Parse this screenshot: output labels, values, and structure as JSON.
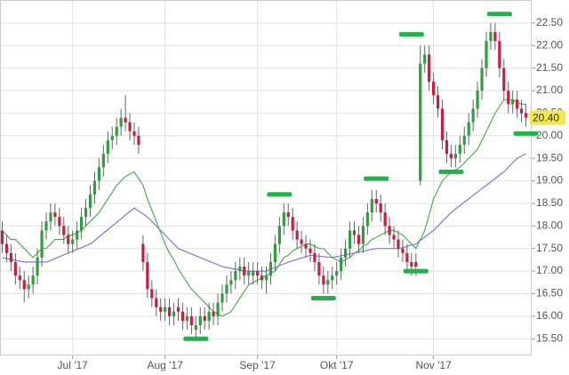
{
  "chart_data": {
    "type": "candlestick",
    "categories": [
      null,
      null,
      null,
      null,
      null,
      null,
      null,
      null,
      null,
      null,
      null,
      null,
      null,
      null,
      null,
      null,
      "Jul '17",
      null,
      null,
      null,
      null,
      null,
      null,
      null,
      null,
      null,
      null,
      null,
      null,
      null,
      null,
      null,
      null,
      null,
      null,
      null,
      null,
      "Aug '17",
      null,
      null,
      null,
      null,
      null,
      null,
      null,
      null,
      null,
      null,
      null,
      null,
      null,
      null,
      null,
      null,
      null,
      null,
      null,
      null,
      "Sep '17",
      null,
      null,
      null,
      null,
      null,
      null,
      null,
      null,
      null,
      null,
      null,
      null,
      null,
      null,
      null,
      null,
      null,
      "Okt '17",
      null,
      null,
      null,
      null,
      null,
      null,
      null,
      null,
      null,
      null,
      null,
      null,
      null,
      null,
      null,
      null,
      null,
      null,
      null,
      null,
      null,
      "Nov '17",
      null,
      null,
      null,
      null,
      null,
      null,
      null,
      null,
      null,
      null,
      null,
      null,
      null,
      null,
      null,
      null,
      null,
      null,
      null,
      null,
      null
    ],
    "open": [
      17.9,
      17.6,
      17.4,
      17.2,
      16.9,
      16.8,
      16.6,
      16.7,
      16.9,
      17.3,
      17.9,
      18.1,
      18.3,
      18.2,
      18.0,
      17.8,
      17.6,
      17.7,
      17.9,
      18.2,
      18.4,
      18.7,
      19.0,
      19.3,
      19.6,
      19.9,
      20.0,
      20.2,
      20.4,
      20.3,
      20.1,
      20.0,
      17.6,
      17.2,
      16.6,
      16.4,
      16.2,
      16.1,
      16.2,
      16.0,
      16.2,
      16.1,
      15.9,
      16.0,
      15.7,
      15.8,
      16.0,
      15.9,
      16.1,
      16.0,
      16.3,
      16.5,
      16.7,
      16.8,
      17.0,
      17.1,
      16.9,
      16.9,
      17.0,
      16.9,
      16.8,
      16.9,
      17.2,
      17.6,
      18.0,
      18.3,
      18.2,
      17.9,
      17.7,
      17.6,
      17.5,
      17.4,
      17.2,
      16.9,
      16.7,
      16.8,
      16.9,
      17.0,
      17.3,
      17.5,
      17.9,
      17.8,
      17.6,
      18.0,
      18.3,
      18.6,
      18.5,
      18.3,
      18.0,
      17.8,
      17.7,
      17.5,
      17.4,
      17.2,
      17.2,
      19.0,
      21.6,
      21.8,
      21.2,
      20.9,
      20.6,
      19.9,
      19.6,
      19.5,
      19.6,
      19.8,
      20.0,
      20.3,
      20.6,
      21.0,
      21.5,
      22.1,
      22.3,
      22.1,
      21.5,
      21.0,
      20.7,
      20.8,
      20.6,
      20.5
    ],
    "high": [
      18.1,
      17.8,
      17.6,
      17.4,
      17.1,
      17.0,
      16.9,
      17.1,
      17.5,
      18.1,
      18.3,
      18.5,
      18.5,
      18.4,
      18.2,
      18.0,
      17.9,
      18.1,
      18.4,
      18.6,
      18.9,
      19.2,
      19.5,
      19.8,
      20.1,
      20.2,
      20.4,
      20.6,
      20.9,
      20.5,
      20.3,
      20.2,
      17.8,
      17.4,
      16.8,
      16.6,
      16.4,
      16.4,
      16.4,
      16.3,
      16.4,
      16.3,
      16.2,
      16.2,
      16.0,
      16.2,
      16.2,
      16.3,
      16.3,
      16.5,
      16.7,
      16.9,
      17.0,
      17.2,
      17.3,
      17.3,
      17.2,
      17.2,
      17.2,
      17.1,
      17.1,
      17.4,
      17.8,
      18.2,
      18.5,
      18.5,
      18.4,
      18.1,
      17.9,
      17.8,
      17.7,
      17.6,
      17.4,
      17.1,
      17.0,
      17.1,
      17.2,
      17.5,
      17.7,
      18.1,
      18.1,
      18.0,
      18.2,
      18.5,
      18.8,
      18.8,
      18.7,
      18.5,
      18.2,
      18.0,
      17.9,
      17.7,
      17.6,
      17.4,
      17.4,
      22.0,
      22.0,
      22.0,
      21.4,
      21.1,
      20.8,
      20.1,
      19.8,
      19.8,
      20.0,
      20.2,
      20.5,
      20.8,
      21.2,
      21.7,
      22.3,
      22.5,
      22.5,
      22.3,
      21.7,
      21.2,
      21.0,
      21.0,
      20.8,
      20.7
    ],
    "low": [
      17.4,
      17.2,
      17.0,
      16.7,
      16.6,
      16.3,
      16.4,
      16.5,
      16.7,
      17.1,
      17.7,
      17.9,
      18.0,
      17.8,
      17.6,
      17.4,
      17.4,
      17.5,
      17.7,
      18.0,
      18.2,
      18.5,
      18.8,
      19.1,
      19.4,
      19.7,
      19.8,
      20.0,
      20.1,
      19.9,
      19.8,
      19.6,
      17.0,
      16.4,
      16.2,
      16.0,
      15.9,
      15.9,
      15.8,
      15.8,
      15.9,
      15.7,
      15.7,
      15.6,
      15.5,
      15.6,
      15.7,
      15.7,
      15.8,
      15.8,
      16.1,
      16.3,
      16.5,
      16.6,
      16.8,
      16.7,
      16.7,
      16.7,
      16.7,
      16.6,
      16.5,
      16.7,
      17.0,
      17.4,
      17.8,
      18.0,
      17.7,
      17.5,
      17.4,
      17.3,
      17.2,
      17.0,
      16.7,
      16.5,
      16.5,
      16.6,
      16.7,
      16.8,
      17.1,
      17.3,
      17.6,
      17.4,
      17.4,
      17.8,
      18.1,
      18.3,
      18.1,
      17.8,
      17.6,
      17.5,
      17.3,
      17.2,
      17.0,
      16.9,
      16.9,
      18.9,
      21.4,
      21.0,
      20.7,
      20.4,
      19.7,
      19.4,
      19.3,
      19.3,
      19.4,
      19.6,
      19.8,
      20.1,
      20.4,
      20.8,
      21.3,
      21.9,
      21.9,
      21.3,
      20.8,
      20.5,
      20.5,
      20.4,
      20.3,
      20.2
    ],
    "close": [
      17.6,
      17.4,
      17.2,
      16.9,
      16.8,
      16.6,
      16.7,
      16.9,
      17.3,
      17.9,
      18.1,
      18.3,
      18.2,
      18.0,
      17.8,
      17.6,
      17.7,
      17.9,
      18.2,
      18.4,
      18.7,
      19.0,
      19.3,
      19.6,
      19.9,
      20.0,
      20.2,
      20.4,
      20.3,
      20.1,
      20.0,
      19.8,
      17.2,
      16.6,
      16.4,
      16.2,
      16.1,
      16.2,
      16.0,
      16.1,
      16.1,
      15.9,
      16.0,
      15.8,
      15.8,
      16.0,
      15.9,
      16.1,
      16.0,
      16.3,
      16.5,
      16.7,
      16.8,
      17.0,
      17.1,
      16.9,
      17.0,
      17.0,
      16.9,
      16.8,
      16.9,
      17.2,
      17.6,
      18.0,
      18.3,
      18.2,
      17.9,
      17.7,
      17.6,
      17.5,
      17.4,
      17.2,
      16.9,
      16.7,
      16.8,
      16.9,
      17.0,
      17.3,
      17.5,
      17.9,
      17.8,
      17.6,
      18.0,
      18.3,
      18.6,
      18.5,
      18.3,
      18.0,
      17.8,
      17.7,
      17.5,
      17.4,
      17.2,
      17.1,
      17.1,
      21.6,
      21.8,
      21.2,
      20.9,
      20.6,
      19.9,
      19.6,
      19.5,
      19.6,
      19.8,
      20.0,
      20.3,
      20.6,
      21.0,
      21.5,
      22.1,
      22.3,
      22.1,
      21.5,
      21.0,
      20.7,
      20.8,
      20.6,
      20.5,
      20.4
    ],
    "up_color": "#2f9e3f",
    "down_color": "#c81e40",
    "lines": [
      {
        "color": "#4fb04f",
        "values": [
          17.9,
          17.8,
          17.7,
          17.7,
          17.6,
          17.5,
          17.4,
          17.3,
          17.4,
          17.5,
          17.5,
          17.6,
          17.7,
          17.7,
          17.7,
          17.8,
          17.8,
          17.85,
          17.9,
          18.0,
          18.1,
          18.2,
          18.3,
          18.45,
          18.6,
          18.75,
          18.9,
          19.0,
          19.1,
          19.15,
          19.2,
          19.05,
          18.9,
          18.6,
          18.35,
          18.1,
          17.85,
          17.6,
          17.4,
          17.25,
          17.05,
          16.9,
          16.75,
          16.6,
          16.5,
          16.4,
          16.3,
          16.2,
          16.1,
          16.05,
          16.0,
          16.05,
          16.1,
          16.25,
          16.4,
          16.55,
          16.7,
          16.75,
          16.8,
          16.85,
          16.9,
          16.95,
          17.0,
          17.15,
          17.3,
          17.35,
          17.45,
          17.5,
          17.55,
          17.6,
          17.6,
          17.55,
          17.5,
          17.5,
          17.4,
          17.3,
          17.25,
          17.2,
          17.25,
          17.3,
          17.4,
          17.45,
          17.55,
          17.6,
          17.7,
          17.75,
          17.8,
          17.85,
          17.9,
          17.9,
          17.85,
          17.8,
          17.7,
          17.6,
          17.5,
          17.7,
          17.9,
          18.25,
          18.6,
          18.8,
          19.0,
          19.1,
          19.2,
          19.25,
          19.3,
          19.4,
          19.5,
          19.6,
          19.7,
          19.9,
          20.1,
          20.3,
          20.5,
          20.65,
          20.8,
          20.8,
          20.8,
          20.75,
          20.7,
          20.7
        ]
      },
      {
        "color": "#7b7bdc",
        "values": [
          17.3,
          17.28,
          17.26,
          17.24,
          17.22,
          17.2,
          17.2,
          17.2,
          17.2,
          17.2,
          17.2,
          17.24,
          17.28,
          17.32,
          17.36,
          17.4,
          17.44,
          17.48,
          17.52,
          17.56,
          17.6,
          17.68,
          17.76,
          17.84,
          17.92,
          18.0,
          18.08,
          18.16,
          18.24,
          18.32,
          18.4,
          18.33,
          18.27,
          18.2,
          18.1,
          18.0,
          17.9,
          17.8,
          17.7,
          17.6,
          17.5,
          17.46,
          17.42,
          17.38,
          17.34,
          17.3,
          17.26,
          17.22,
          17.18,
          17.14,
          17.1,
          17.08,
          17.06,
          17.04,
          17.02,
          17.0,
          17.0,
          17.0,
          17.0,
          17.0,
          17.0,
          17.04,
          17.08,
          17.12,
          17.16,
          17.2,
          17.23,
          17.26,
          17.29,
          17.32,
          17.35,
          17.34,
          17.33,
          17.32,
          17.31,
          17.3,
          17.32,
          17.34,
          17.36,
          17.38,
          17.4,
          17.42,
          17.44,
          17.46,
          17.48,
          17.5,
          17.5,
          17.5,
          17.5,
          17.5,
          17.5,
          17.52,
          17.55,
          17.58,
          17.6,
          17.68,
          17.75,
          17.83,
          17.9,
          18.0,
          18.1,
          18.2,
          18.3,
          18.38,
          18.45,
          18.53,
          18.6,
          18.68,
          18.75,
          18.83,
          18.9,
          18.98,
          19.05,
          19.13,
          19.2,
          19.3,
          19.4,
          19.5,
          19.55,
          19.6
        ]
      }
    ],
    "markers": {
      "color": "#1fb34a",
      "values": [
        null,
        null,
        null,
        null,
        null,
        null,
        null,
        null,
        null,
        null,
        null,
        null,
        null,
        null,
        null,
        null,
        null,
        null,
        null,
        null,
        null,
        null,
        null,
        null,
        null,
        null,
        null,
        null,
        null,
        null,
        null,
        null,
        null,
        null,
        null,
        null,
        null,
        null,
        null,
        null,
        null,
        null,
        null,
        null,
        15.5,
        null,
        null,
        null,
        null,
        null,
        null,
        null,
        null,
        null,
        null,
        null,
        null,
        null,
        null,
        null,
        null,
        null,
        null,
        18.7,
        null,
        null,
        null,
        null,
        null,
        null,
        null,
        null,
        null,
        16.4,
        null,
        null,
        null,
        null,
        null,
        null,
        null,
        null,
        null,
        null,
        null,
        19.05,
        null,
        null,
        null,
        null,
        null,
        null,
        null,
        22.25,
        17.0,
        null,
        null,
        null,
        null,
        null,
        null,
        null,
        19.2,
        null,
        null,
        null,
        null,
        null,
        null,
        null,
        null,
        null,
        null,
        22.7,
        null,
        null,
        null,
        null,
        null,
        20.05
      ]
    },
    "last_price": {
      "value": 20.4,
      "label": "20.40"
    },
    "ylim": [
      15.13,
      23.01
    ],
    "yticks": [
      {
        "value": 15.5,
        "label": "15.50"
      },
      {
        "value": 16,
        "label": "16.00"
      },
      {
        "value": 16.5,
        "label": "16.50"
      },
      {
        "value": 17,
        "label": "17.00"
      },
      {
        "value": 17.5,
        "label": "17.50"
      },
      {
        "value": 18,
        "label": "18.00"
      },
      {
        "value": 18.5,
        "label": "18.50"
      },
      {
        "value": 19,
        "label": "19.00"
      },
      {
        "value": 19.5,
        "label": "19.50"
      },
      {
        "value": 20,
        "label": "20.00"
      },
      {
        "value": 20.5,
        "label": "20.50"
      },
      {
        "value": 21,
        "label": "21.00"
      },
      {
        "value": 21.5,
        "label": "21.50"
      },
      {
        "value": 22,
        "label": "22.00"
      },
      {
        "value": 22.5,
        "label": "22.50"
      }
    ],
    "grid": true
  }
}
